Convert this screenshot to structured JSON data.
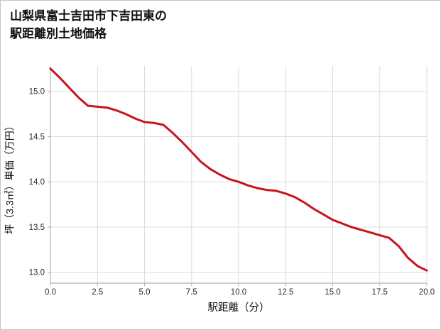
{
  "title": {
    "line1": "山梨県富士吉田市下吉田東の",
    "line2": "駅距離別土地価格"
  },
  "chart_data": {
    "type": "line",
    "title": "山梨県富士吉田市下吉田東の駅距離別土地価格",
    "xlabel": "駅距離（分）",
    "ylabel": "坪（3.3㎡）単価（万円）",
    "x": [
      0,
      0.5,
      1,
      1.5,
      2,
      2.5,
      3,
      3.5,
      4,
      4.5,
      5,
      5.5,
      6,
      6.5,
      7,
      7.5,
      8,
      8.5,
      9,
      9.5,
      10,
      10.5,
      11,
      11.5,
      12,
      12.5,
      13,
      13.5,
      14,
      14.5,
      15,
      15.5,
      16,
      16.5,
      17,
      17.5,
      18,
      18.5,
      19,
      19.5,
      20
    ],
    "values": [
      15.25,
      15.15,
      15.04,
      14.93,
      14.84,
      14.83,
      14.82,
      14.79,
      14.75,
      14.7,
      14.66,
      14.65,
      14.63,
      14.54,
      14.44,
      14.33,
      14.22,
      14.14,
      14.08,
      14.03,
      14.0,
      13.96,
      13.93,
      13.91,
      13.9,
      13.87,
      13.83,
      13.77,
      13.7,
      13.64,
      13.58,
      13.54,
      13.5,
      13.47,
      13.44,
      13.41,
      13.38,
      13.29,
      13.16,
      13.07,
      13.02
    ],
    "xlim": [
      0,
      20
    ],
    "ylim": [
      12.88,
      15.28
    ],
    "x_ticks": [
      0,
      2.5,
      5,
      7.5,
      10,
      12.5,
      15,
      17.5,
      20
    ],
    "y_ticks": [
      13.0,
      13.5,
      14.0,
      14.5,
      15.0
    ],
    "grid": true,
    "legend": "none",
    "line_color": "#c9121f",
    "grid_color": "#dcdcdc",
    "spine_color": "#b0b0b0",
    "tick_color": "#2b2b2b",
    "line_width": 3
  }
}
